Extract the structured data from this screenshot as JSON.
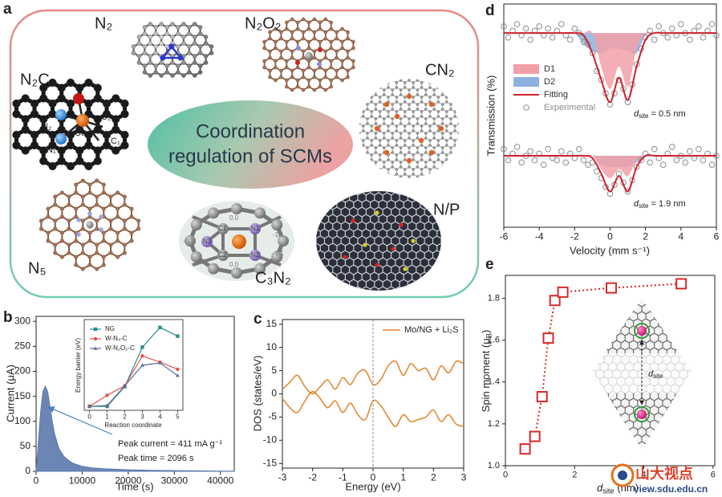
{
  "panel_a": {
    "label": "a",
    "center_text": [
      "Coordination",
      "regulation of SCMs"
    ],
    "structures": [
      "N₂",
      "N₂O₂",
      "CN₂",
      "N₂C₂",
      "N₅",
      "C₃N₂",
      "N/P"
    ],
    "n2c2_atoms": [
      "N₂",
      "Cu",
      "C₂",
      "N₁",
      "C₁"
    ],
    "c3n2_atoms": [
      "C1",
      "N1",
      "N2",
      "C2",
      "N3"
    ],
    "c3n2_charges": [
      "0.0",
      "-1.1",
      "-0.3",
      "-1.1",
      "0.0"
    ]
  },
  "chart_data": [
    {
      "panel": "b",
      "type": "area",
      "x": [
        0,
        500,
        1000,
        1500,
        2000,
        2500,
        3000,
        3500,
        4000,
        5000,
        6000,
        7000,
        8000,
        10000,
        12000,
        15000,
        20000,
        25000,
        30000,
        35000,
        40000,
        43000
      ],
      "values": [
        0,
        60,
        120,
        160,
        170,
        160,
        130,
        100,
        75,
        45,
        30,
        22,
        16,
        10,
        7,
        5,
        3,
        2,
        1.5,
        1,
        0.5,
        0.5
      ],
      "color": "#5b79ad",
      "xlim": [
        0,
        43000
      ],
      "ylim": [
        0,
        310
      ],
      "xticks": [
        0,
        10000,
        20000,
        30000,
        40000
      ],
      "yticks": [
        0,
        50,
        100,
        150,
        200,
        250,
        300
      ],
      "xlabel": "Time (s)",
      "ylabel": "Current (μA)",
      "annotations": [
        "Peak current = 411 mA g⁻¹",
        "Peak time = 2096 s"
      ]
    },
    {
      "type": "line",
      "x": [
        0,
        1,
        2,
        3,
        4,
        5
      ],
      "series": [
        {
          "name": "NG",
          "color": "#2b8e8e",
          "marker": "square",
          "values": [
            0,
            0,
            0.25,
            0.75,
            1.0,
            0.89
          ]
        },
        {
          "name": "W-N₄-C",
          "color": "#e0564c",
          "marker": "circle",
          "values": [
            0,
            0.14,
            0.26,
            0.64,
            0.56,
            0.47
          ]
        },
        {
          "name": "W-N₂O₂-C",
          "color": "#5b6e9c",
          "marker": "triangle",
          "values": [
            0,
            0.01,
            0.26,
            0.52,
            0.55,
            0.39
          ]
        }
      ],
      "xlim": [
        -0.3,
        5.3
      ],
      "ylim": [
        -0.05,
        1.1
      ],
      "xticks": [
        0,
        1,
        2,
        3,
        4,
        5
      ],
      "xlabel": "Reaction coordinate",
      "ylabel": "Energy barrier (eV)"
    },
    {
      "panel": "c",
      "type": "line",
      "x": [
        -3,
        -2.75,
        -2.5,
        -2.25,
        -2,
        -1.75,
        -1.5,
        -1.25,
        -1,
        -0.75,
        -0.5,
        -0.25,
        0,
        0.25,
        0.5,
        0.75,
        1,
        1.25,
        1.5,
        1.75,
        2,
        2.25,
        2.5,
        2.75,
        3
      ],
      "series": [
        {
          "name": "Mo/NG + Li₂S",
          "color": "#e0862a",
          "values": [
            1,
            2.5,
            4,
            1.5,
            0,
            1.5,
            3,
            1,
            3.5,
            2,
            4.5,
            5,
            2,
            3,
            6,
            7,
            4,
            6.5,
            5,
            5.5,
            3,
            6,
            4.5,
            7,
            6.5
          ]
        },
        {
          "color": "#e0862a",
          "values": [
            -1,
            -3,
            -4,
            -1.5,
            0.5,
            -1,
            -3,
            -1.5,
            -4,
            -2,
            -4.5,
            -5.5,
            -1.5,
            -2.5,
            -5,
            -7,
            -4.5,
            -6,
            -5.5,
            -5,
            -3.5,
            -6,
            -4.5,
            -6.5,
            -7
          ]
        }
      ],
      "vlines": [
        0
      ],
      "xlim": [
        -3,
        3
      ],
      "ylim": [
        -16,
        16
      ],
      "xticks": [
        -3,
        -2,
        -1,
        0,
        1,
        2,
        3
      ],
      "yticks": [
        -15,
        -10,
        -5,
        0,
        5,
        10,
        15
      ],
      "xlabel": "Energy (eV)",
      "ylabel": "DOS (states/eV)"
    },
    {
      "panel": "d",
      "type": "spectrum",
      "xlim": [
        -6,
        6
      ],
      "ylim": [
        0,
        100
      ],
      "xticks": [
        -6,
        -4,
        -2,
        0,
        2,
        4,
        6
      ],
      "xlabel": "Velocity (mm s⁻¹)",
      "ylabel": "Transmission (%)",
      "legend": [
        {
          "name": "D1",
          "color": "#f2a0a8",
          "style": "area"
        },
        {
          "name": "D2",
          "color": "#8db2e0",
          "style": "area"
        },
        {
          "name": "Fitting",
          "color": "#d0202a",
          "style": "line"
        },
        {
          "name": "Experimental",
          "color": "#8c8c8c",
          "style": "marker"
        }
      ],
      "spectra": [
        {
          "annotation": [
            {
              "text": "d",
              "italic": true
            },
            {
              "text": "site",
              "sub": true
            },
            {
              "text": " = 0.5 nm"
            }
          ],
          "baseline": 87,
          "x": [
            -6,
            -5.5,
            -5,
            -4.5,
            -4,
            -3.5,
            -3,
            -2.5,
            -2,
            -1.5,
            -1,
            -0.5,
            0,
            0.5,
            1,
            1.5,
            2,
            2.5,
            3,
            3.5,
            4,
            4.5,
            5,
            5.5,
            6
          ],
          "series": [
            {
              "values": [
                87,
                87,
                87,
                87,
                87,
                87,
                87,
                87,
                87,
                87,
                87,
                72,
                62,
                72,
                63,
                80,
                87,
                87,
                87,
                87,
                87,
                87,
                87,
                87,
                87
              ]
            },
            {
              "values": [
                87,
                87,
                87,
                87,
                87,
                87,
                87,
                87,
                87,
                82,
                79,
                78,
                80,
                80,
                79,
                78,
                86,
                87,
                87,
                87,
                87,
                87,
                87,
                87,
                87
              ]
            },
            {
              "values": [
                87,
                87,
                87,
                87,
                87,
                87,
                87,
                87,
                87,
                86,
                78,
                66,
                56,
                67,
                57,
                72,
                84,
                87,
                87,
                87,
                87,
                87,
                87,
                87,
                87
              ]
            },
            {
              "x": [
                -6,
                -5.75,
                -5.5,
                -5.25,
                -5,
                -4.75,
                -4.5,
                -4.25,
                -4,
                -3.75,
                -3.5,
                -3.25,
                -3,
                -2.75,
                -2.5,
                -2.25,
                -2,
                -1.75,
                -1.5,
                -1.25,
                -1,
                -0.75,
                -0.5,
                -0.25,
                0,
                0.25,
                0.5,
                0.75,
                1,
                1.25,
                1.5,
                1.75,
                2,
                2.25,
                2.5,
                2.75,
                3,
                3.25,
                3.5,
                3.75,
                4,
                4.25,
                4.5,
                4.75,
                5,
                5.25,
                5.5,
                5.75,
                6
              ],
              "values": [
                90,
                85,
                88,
                91,
                86,
                89,
                84,
                88,
                90,
                86,
                89,
                85,
                88,
                91,
                86,
                84,
                89,
                87,
                83,
                82,
                78,
                70,
                66,
                60,
                55,
                60,
                66,
                62,
                56,
                64,
                73,
                80,
                85,
                88,
                84,
                90,
                87,
                85,
                89,
                86,
                91,
                87,
                84,
                88,
                90,
                85,
                88,
                91,
                86
              ]
            }
          ]
        },
        {
          "annotation": [
            {
              "text": "d",
              "italic": true
            },
            {
              "text": "site",
              "sub": true
            },
            {
              "text": " = 1.9 nm"
            }
          ],
          "baseline": 32,
          "x": [
            -6,
            -5.5,
            -5,
            -4.5,
            -4,
            -3.5,
            -3,
            -2.5,
            -2,
            -1.5,
            -1,
            -0.5,
            0,
            0.5,
            1,
            1.5,
            2,
            2.5,
            3,
            3.5,
            4,
            4.5,
            5,
            5.5,
            6
          ],
          "series": [
            {
              "values": [
                32,
                32,
                32,
                32,
                32,
                32,
                32,
                32,
                32,
                32,
                32,
                26,
                22,
                26,
                23,
                30,
                32,
                32,
                32,
                32,
                32,
                32,
                32,
                32,
                32
              ]
            },
            {
              "values": [
                32,
                32,
                32,
                32,
                32,
                32,
                32,
                32,
                32,
                32,
                32,
                28,
                27,
                27,
                27,
                29,
                32,
                32,
                32,
                32,
                32,
                32,
                32,
                32,
                32
              ]
            },
            {
              "values": [
                32,
                32,
                32,
                32,
                32,
                32,
                32,
                32,
                32,
                32,
                31,
                24,
                16,
                23,
                16,
                27,
                32,
                32,
                32,
                32,
                32,
                32,
                32,
                32,
                32
              ]
            },
            {
              "x": [
                -6,
                -5.75,
                -5.5,
                -5.25,
                -5,
                -4.75,
                -4.5,
                -4.25,
                -4,
                -3.75,
                -3.5,
                -3.25,
                -3,
                -2.75,
                -2.5,
                -2.25,
                -2,
                -1.75,
                -1.5,
                -1.25,
                -1,
                -0.75,
                -0.5,
                -0.25,
                0,
                0.25,
                0.5,
                0.75,
                1,
                1.25,
                1.5,
                1.75,
                2,
                2.25,
                2.5,
                2.75,
                3,
                3.25,
                3.5,
                3.75,
                4,
                4.25,
                4.5,
                4.75,
                5,
                5.25,
                5.5,
                5.75,
                6
              ],
              "values": [
                35,
                30,
                33,
                36,
                29,
                32,
                34,
                30,
                33,
                28,
                35,
                31,
                30,
                34,
                29,
                33,
                31,
                35,
                30,
                28,
                29,
                25,
                22,
                18,
                15,
                19,
                24,
                20,
                16,
                21,
                27,
                30,
                33,
                29,
                35,
                31,
                28,
                33,
                36,
                30,
                32,
                29,
                34,
                31,
                35,
                30,
                33,
                28,
                32
              ]
            }
          ]
        }
      ]
    },
    {
      "panel": "e",
      "type": "scatter",
      "x": [
        0.57,
        0.85,
        1.06,
        1.24,
        1.43,
        1.66,
        3.06,
        5.08
      ],
      "values": [
        1.08,
        1.14,
        1.33,
        1.61,
        1.79,
        1.83,
        1.85,
        1.87
      ],
      "color": "#d62a2a",
      "line_style": "dotted",
      "xlim": [
        0,
        6.05
      ],
      "ylim": [
        1.0,
        1.91
      ],
      "xticks": [
        0,
        2,
        4,
        6
      ],
      "yticks": [
        {
          "value": 1,
          "label": "1.0"
        },
        1.2,
        1.4,
        1.6,
        1.8
      ],
      "xlabel": [
        {
          "text": "d",
          "italic": true
        },
        {
          "text": "site",
          "sub": true
        },
        {
          "text": " (nm)"
        }
      ],
      "ylabel": [
        {
          "text": "Spin moment (μ"
        },
        {
          "text": "B",
          "sub": true
        },
        {
          "text": ")"
        }
      ],
      "annotation": [
        {
          "text": "d",
          "italic": true
        },
        {
          "text": "site",
          "sub": true
        }
      ]
    }
  ],
  "watermark": {
    "name": "山大视点",
    "url": "view.sdu.edu.cn"
  }
}
